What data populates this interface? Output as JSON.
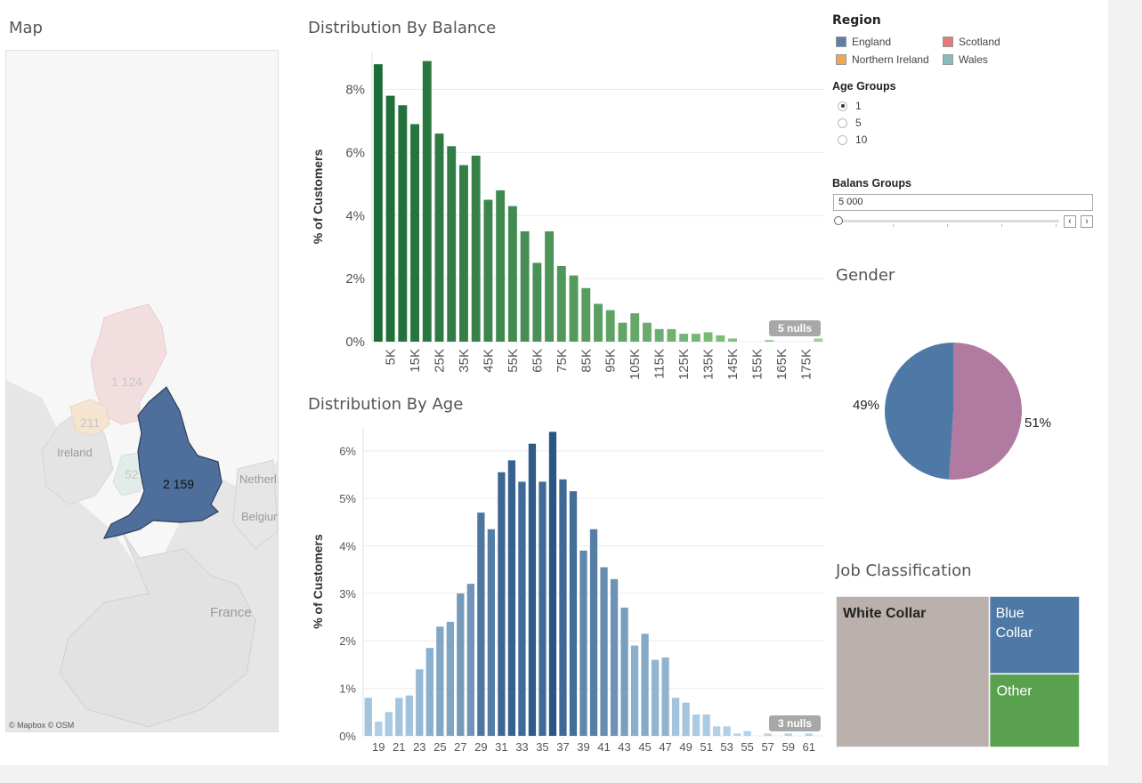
{
  "map": {
    "title": "Map",
    "attribution": "© Mapbox © OSM",
    "labels": {
      "ireland": "Ireland",
      "netherlands": "Netherl",
      "belgium": "Belgiun",
      "france": "France"
    },
    "values": {
      "england": "2 159",
      "scotland": "1 124",
      "northern_ireland": "211",
      "wales": "52"
    }
  },
  "legend": {
    "region": {
      "title": "Region",
      "items": [
        {
          "label": "England",
          "color": "#5b7fa6"
        },
        {
          "label": "Scotland",
          "color": "#e07b7b"
        },
        {
          "label": "Northern Ireland",
          "color": "#efa655"
        },
        {
          "label": "Wales",
          "color": "#86bcb6"
        }
      ]
    },
    "age_groups": {
      "title": "Age Groups",
      "options": [
        "1",
        "5",
        "10"
      ],
      "selected": "1"
    },
    "balans_groups": {
      "title": "Balans Groups",
      "value": "5 000",
      "prev_label": "‹",
      "next_label": "›"
    }
  },
  "charts": {
    "gender_title": "Gender",
    "job_title": "Job Classification"
  },
  "chart_data": [
    {
      "type": "bar",
      "title": "Distribution By Balance",
      "ylabel": "% of Customers",
      "xlabel": "",
      "ylim": [
        0,
        9.2
      ],
      "yticks": [
        "0%",
        "2%",
        "4%",
        "6%",
        "8%"
      ],
      "categories": [
        "0K",
        "5K",
        "10K",
        "15K",
        "20K",
        "25K",
        "30K",
        "35K",
        "40K",
        "45K",
        "50K",
        "55K",
        "60K",
        "65K",
        "70K",
        "75K",
        "80K",
        "85K",
        "90K",
        "95K",
        "100K",
        "105K",
        "110K",
        "115K",
        "120K",
        "125K",
        "130K",
        "135K",
        "140K",
        "145K",
        "150K",
        "155K",
        "160K",
        "165K",
        "170K",
        "175K",
        "180K"
      ],
      "shown_tick_labels": [
        "5K",
        "15K",
        "25K",
        "35K",
        "45K",
        "55K",
        "65K",
        "75K",
        "85K",
        "95K",
        "105K",
        "115K",
        "125K",
        "135K",
        "145K",
        "155K",
        "165K",
        "175K"
      ],
      "values": [
        8.8,
        7.8,
        7.5,
        6.9,
        8.9,
        6.6,
        6.2,
        5.6,
        5.9,
        4.5,
        4.8,
        4.3,
        3.5,
        2.5,
        3.5,
        2.4,
        2.1,
        1.7,
        1.2,
        1.0,
        0.6,
        0.9,
        0.6,
        0.4,
        0.4,
        0.25,
        0.25,
        0.3,
        0.2,
        0.1,
        0,
        0,
        0.05,
        0,
        0,
        0,
        0.1
      ],
      "nulls_badge": "5 nulls"
    },
    {
      "type": "bar",
      "title": "Distribution By Age",
      "ylabel": "% of Customers",
      "xlabel": "",
      "ylim": [
        0,
        6.5
      ],
      "yticks": [
        "0%",
        "1%",
        "2%",
        "3%",
        "4%",
        "5%",
        "6%"
      ],
      "categories": [
        "18",
        "19",
        "20",
        "21",
        "22",
        "23",
        "24",
        "25",
        "26",
        "27",
        "28",
        "29",
        "30",
        "31",
        "32",
        "33",
        "34",
        "35",
        "36",
        "37",
        "38",
        "39",
        "40",
        "41",
        "42",
        "43",
        "44",
        "45",
        "46",
        "47",
        "48",
        "49",
        "50",
        "51",
        "52",
        "53",
        "54",
        "55",
        "56",
        "57",
        "58",
        "59",
        "60",
        "61",
        "62"
      ],
      "shown_tick_labels": [
        "19",
        "21",
        "23",
        "25",
        "27",
        "29",
        "31",
        "33",
        "35",
        "37",
        "39",
        "41",
        "43",
        "45",
        "47",
        "49",
        "51",
        "53",
        "55",
        "57",
        "59",
        "61"
      ],
      "values": [
        0.8,
        0.3,
        0.5,
        0.8,
        0.85,
        1.4,
        1.85,
        2.3,
        2.4,
        3.0,
        3.2,
        4.7,
        4.35,
        5.55,
        5.8,
        5.35,
        6.15,
        5.35,
        6.4,
        5.4,
        5.15,
        3.9,
        4.35,
        3.55,
        3.3,
        2.7,
        1.9,
        2.15,
        1.6,
        1.65,
        0.8,
        0.7,
        0.45,
        0.45,
        0.2,
        0.2,
        0.05,
        0.1,
        0,
        0.05,
        0,
        0.05,
        0,
        0.05,
        0
      ],
      "nulls_badge": "3 nulls"
    },
    {
      "type": "pie",
      "title": "Gender",
      "slices": [
        {
          "label": "49%",
          "value": 49,
          "color": "#4e79a7"
        },
        {
          "label": "51%",
          "value": 51,
          "color": "#b07aa1"
        }
      ]
    },
    {
      "type": "treemap",
      "title": "Job Classification",
      "items": [
        {
          "label": "White Collar",
          "value": 63,
          "color": "#bab0ac"
        },
        {
          "label": "Blue Collar",
          "value": 19,
          "color": "#4e79a7"
        },
        {
          "label": "Other",
          "value": 18,
          "color": "#59a14f"
        }
      ]
    }
  ]
}
